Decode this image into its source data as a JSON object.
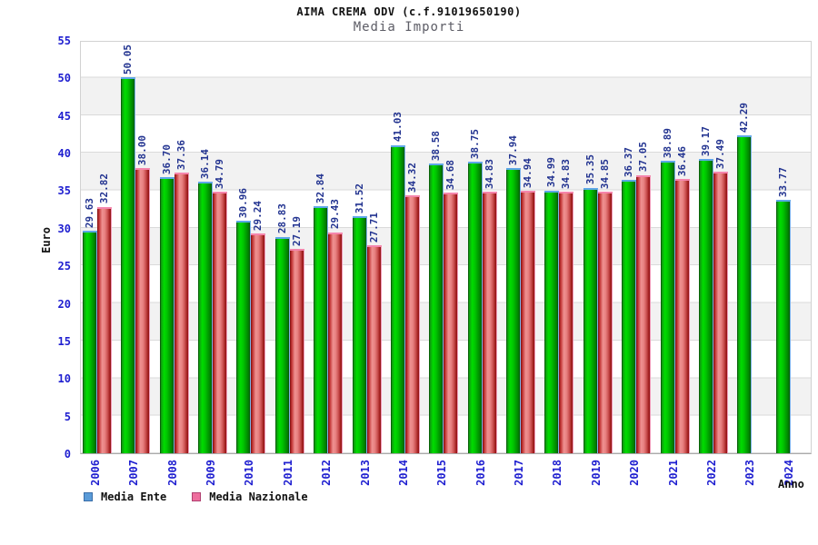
{
  "header": {
    "title": "AIMA CREMA ODV (c.f.91019650190)",
    "subtitle": "Media Importi"
  },
  "chart_data": {
    "type": "bar",
    "title": "Media Importi",
    "xlabel": "Anno",
    "ylabel": "Euro",
    "ylim": [
      0,
      55
    ],
    "yticks": [
      0,
      5,
      10,
      15,
      20,
      25,
      30,
      35,
      40,
      45,
      50,
      55
    ],
    "grid": "horizontal-bands",
    "legend_position": "bottom-left",
    "value_labels": "rotated-90-above-bars",
    "categories": [
      "2006",
      "2007",
      "2008",
      "2009",
      "2010",
      "2011",
      "2012",
      "2013",
      "2014",
      "2015",
      "2016",
      "2017",
      "2018",
      "2019",
      "2020",
      "2021",
      "2022",
      "2023",
      "2024"
    ],
    "series": [
      {
        "name": "Media Ente",
        "bar_color": "#00cc00",
        "legend_fill": "#5a9bd8",
        "legend_border": "#3a6ea8",
        "values": [
          29.63,
          50.05,
          36.7,
          36.14,
          30.96,
          28.83,
          32.84,
          31.52,
          41.03,
          38.58,
          38.75,
          37.94,
          34.99,
          35.35,
          36.37,
          38.89,
          39.17,
          42.29,
          33.77
        ]
      },
      {
        "name": "Media Nazionale",
        "bar_color": "#dd4444",
        "legend_fill": "#ee6e9e",
        "legend_border": "#b04070",
        "values": [
          32.82,
          38.0,
          37.36,
          34.79,
          29.24,
          27.19,
          29.43,
          27.71,
          34.32,
          34.68,
          34.83,
          34.94,
          34.83,
          34.85,
          37.05,
          36.46,
          37.49,
          null,
          null
        ]
      }
    ],
    "style": {
      "axis_label_color": "#1f1fd0",
      "value_label_color": "#223390",
      "band_color": "#f2f2f2",
      "bar_cap_ente": "#5ea7e8",
      "bar_cap_nazionale": "#f585ac"
    }
  }
}
